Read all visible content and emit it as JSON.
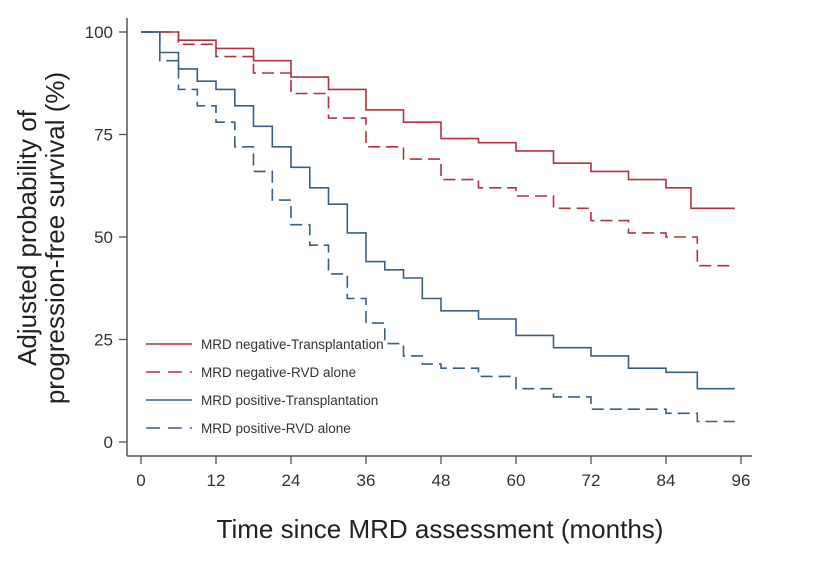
{
  "chart_data": {
    "type": "line",
    "xlabel": "Time since MRD assessment (months)",
    "ylabel_lines": [
      "Adjusted probability of",
      "progression-free survival (%)"
    ],
    "xlim": [
      0,
      96
    ],
    "ylim": [
      0,
      100
    ],
    "xticks": [
      0,
      12,
      24,
      36,
      48,
      60,
      72,
      84,
      96
    ],
    "yticks": [
      0,
      25,
      50,
      75,
      100
    ],
    "grid": false,
    "legend_position": "bottom-left",
    "series": [
      {
        "name": "MRD negative-Transplantation",
        "color": "#b3323f",
        "dash": "solid",
        "points": [
          [
            0,
            100
          ],
          [
            6,
            98
          ],
          [
            12,
            96
          ],
          [
            18,
            93
          ],
          [
            24,
            89
          ],
          [
            30,
            86
          ],
          [
            36,
            81
          ],
          [
            42,
            78
          ],
          [
            48,
            74
          ],
          [
            54,
            73
          ],
          [
            60,
            71
          ],
          [
            66,
            68
          ],
          [
            72,
            66
          ],
          [
            78,
            64
          ],
          [
            84,
            62
          ],
          [
            88,
            57
          ],
          [
            95,
            57
          ]
        ]
      },
      {
        "name": "MRD negative-RVD alone",
        "color": "#b3323f",
        "dash": "dashed",
        "points": [
          [
            0,
            100
          ],
          [
            6,
            97
          ],
          [
            12,
            94
          ],
          [
            18,
            90
          ],
          [
            24,
            85
          ],
          [
            30,
            79
          ],
          [
            36,
            72
          ],
          [
            42,
            69
          ],
          [
            48,
            64
          ],
          [
            54,
            62
          ],
          [
            60,
            60
          ],
          [
            66,
            57
          ],
          [
            72,
            54
          ],
          [
            78,
            51
          ],
          [
            84,
            50
          ],
          [
            89,
            43
          ],
          [
            95,
            43
          ]
        ]
      },
      {
        "name": "MRD positive-Transplantation",
        "color": "#3a5f82",
        "dash": "solid",
        "points": [
          [
            0,
            100
          ],
          [
            3,
            95
          ],
          [
            6,
            91
          ],
          [
            9,
            88
          ],
          [
            12,
            86
          ],
          [
            15,
            82
          ],
          [
            18,
            77
          ],
          [
            21,
            72
          ],
          [
            24,
            67
          ],
          [
            27,
            62
          ],
          [
            30,
            58
          ],
          [
            33,
            51
          ],
          [
            36,
            44
          ],
          [
            39,
            42
          ],
          [
            42,
            40
          ],
          [
            45,
            35
          ],
          [
            48,
            32
          ],
          [
            54,
            30
          ],
          [
            60,
            26
          ],
          [
            66,
            23
          ],
          [
            72,
            21
          ],
          [
            78,
            18
          ],
          [
            84,
            17
          ],
          [
            89,
            13
          ],
          [
            95,
            13
          ]
        ]
      },
      {
        "name": "MRD positive-RVD alone",
        "color": "#3a5f82",
        "dash": "dashed",
        "points": [
          [
            0,
            100
          ],
          [
            3,
            93
          ],
          [
            6,
            86
          ],
          [
            9,
            82
          ],
          [
            12,
            78
          ],
          [
            15,
            72
          ],
          [
            18,
            66
          ],
          [
            21,
            59
          ],
          [
            24,
            53
          ],
          [
            27,
            48
          ],
          [
            30,
            41
          ],
          [
            33,
            35
          ],
          [
            36,
            29
          ],
          [
            39,
            24
          ],
          [
            42,
            21
          ],
          [
            45,
            19
          ],
          [
            48,
            18
          ],
          [
            54,
            16
          ],
          [
            60,
            13
          ],
          [
            66,
            11
          ],
          [
            72,
            8
          ],
          [
            78,
            8
          ],
          [
            84,
            7
          ],
          [
            89,
            5
          ],
          [
            95,
            5
          ]
        ]
      }
    ]
  }
}
